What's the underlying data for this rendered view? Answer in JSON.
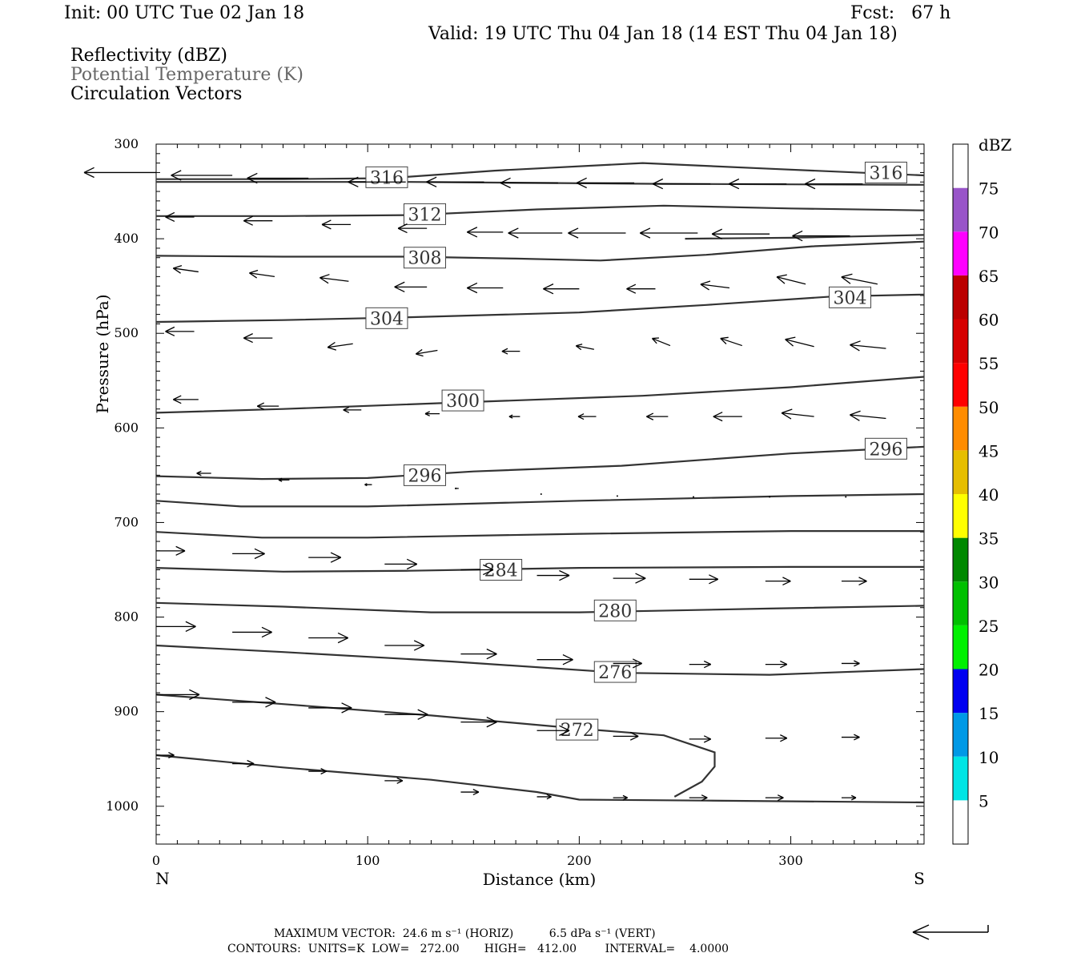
{
  "header": {
    "init": "Init: 00 UTC Tue 02 Jan 18",
    "fcst": "Fcst:   67 h",
    "valid": "Valid: 19 UTC Thu 04 Jan 18 (14 EST Thu 04 Jan 18)"
  },
  "legend": {
    "reflectivity": "Reflectivity (dBZ)",
    "theta": "Potential Temperature (K)",
    "vectors": "Circulation Vectors",
    "theta_color": "#666666"
  },
  "footer": {
    "max_vector": "MAXIMUM VECTOR:  24.6 m s⁻¹ (HORIZ)          6.5 dPa s⁻¹ (VERT)",
    "contours": "CONTOURS:  UNITS=K  LOW=   272.00       HIGH=   412.00        INTERVAL=    4.0000"
  },
  "chart_data": {
    "type": "contour",
    "xlabel": "Distance (km)",
    "ylabel": "Pressure (hPa)",
    "xlim": [
      0,
      363
    ],
    "ylim": [
      300,
      1040
    ],
    "x_ticks": [
      0,
      100,
      200,
      300
    ],
    "y_ticks": [
      300,
      400,
      500,
      600,
      700,
      800,
      900,
      1000
    ],
    "endpoint_labels": {
      "left": "N",
      "right": "S"
    },
    "colorbar": {
      "unit": "dBZ",
      "levels": [
        5,
        10,
        15,
        20,
        25,
        30,
        35,
        40,
        45,
        50,
        55,
        60,
        65,
        70,
        75
      ],
      "colors": [
        "#ffffff",
        "#00e5e5",
        "#0099e6",
        "#0000f0",
        "#00f000",
        "#00c000",
        "#008800",
        "#ffff00",
        "#e6be00",
        "#ff8c00",
        "#ff0000",
        "#d60000",
        "#bb0000",
        "#ff00ff",
        "#9955c9",
        "#ffffff"
      ]
    },
    "theta_contours": [
      {
        "label": "316",
        "label_at": [
          [
            109,
            335
          ],
          [
            345,
            330
          ]
        ],
        "points": [
          [
            0,
            337
          ],
          [
            60,
            337
          ],
          [
            110,
            336
          ],
          [
            160,
            328
          ],
          [
            230,
            320
          ],
          [
            290,
            326
          ],
          [
            363,
            333
          ]
        ]
      },
      {
        "label": "",
        "points": [
          [
            0,
            340
          ],
          [
            120,
            340
          ],
          [
            240,
            342
          ],
          [
            363,
            343
          ]
        ]
      },
      {
        "label": "312",
        "label_at": [
          [
            127,
            374
          ]
        ],
        "points": [
          [
            0,
            376
          ],
          [
            60,
            376
          ],
          [
            120,
            375
          ],
          [
            180,
            369
          ],
          [
            240,
            365
          ],
          [
            300,
            368
          ],
          [
            363,
            370
          ]
        ]
      },
      {
        "label": "",
        "points": [
          [
            250,
            400
          ],
          [
            300,
            399
          ],
          [
            363,
            396
          ]
        ]
      },
      {
        "label": "308",
        "label_at": [
          [
            127,
            420
          ]
        ],
        "points": [
          [
            0,
            418
          ],
          [
            60,
            419
          ],
          [
            120,
            419
          ],
          [
            170,
            421
          ],
          [
            210,
            423
          ],
          [
            260,
            417
          ],
          [
            310,
            408
          ],
          [
            363,
            403
          ]
        ]
      },
      {
        "label": "304",
        "label_at": [
          [
            109,
            484
          ],
          [
            328,
            462
          ]
        ],
        "points": [
          [
            0,
            488
          ],
          [
            60,
            486
          ],
          [
            120,
            483
          ],
          [
            200,
            478
          ],
          [
            260,
            470
          ],
          [
            320,
            461
          ],
          [
            363,
            459
          ]
        ]
      },
      {
        "label": "300",
        "label_at": [
          [
            145,
            571
          ]
        ],
        "points": [
          [
            0,
            584
          ],
          [
            60,
            580
          ],
          [
            145,
            573
          ],
          [
            230,
            566
          ],
          [
            300,
            557
          ],
          [
            363,
            546
          ]
        ]
      },
      {
        "label": "296",
        "label_at": [
          [
            127,
            650
          ],
          [
            345,
            622
          ]
        ],
        "points": [
          [
            0,
            651
          ],
          [
            50,
            654
          ],
          [
            100,
            653
          ],
          [
            150,
            646
          ],
          [
            220,
            640
          ],
          [
            300,
            627
          ],
          [
            363,
            620
          ]
        ]
      },
      {
        "label": "",
        "points": [
          [
            0,
            677
          ],
          [
            40,
            683
          ],
          [
            100,
            683
          ],
          [
            200,
            677
          ],
          [
            300,
            672
          ],
          [
            363,
            670
          ]
        ]
      },
      {
        "label": "",
        "points": [
          [
            0,
            710
          ],
          [
            50,
            716
          ],
          [
            100,
            716
          ],
          [
            200,
            712
          ],
          [
            300,
            709
          ],
          [
            363,
            709
          ]
        ]
      },
      {
        "label": "284",
        "label_at": [
          [
            163,
            750
          ]
        ],
        "points": [
          [
            0,
            748
          ],
          [
            60,
            752
          ],
          [
            120,
            751
          ],
          [
            200,
            748
          ],
          [
            300,
            747
          ],
          [
            363,
            747
          ]
        ]
      },
      {
        "label": "280",
        "label_at": [
          [
            217,
            793
          ]
        ],
        "points": [
          [
            0,
            785
          ],
          [
            60,
            789
          ],
          [
            130,
            795
          ],
          [
            200,
            795
          ],
          [
            290,
            791
          ],
          [
            363,
            788
          ]
        ]
      },
      {
        "label": "276",
        "label_at": [
          [
            217,
            858
          ]
        ],
        "points": [
          [
            0,
            830
          ],
          [
            60,
            837
          ],
          [
            140,
            847
          ],
          [
            220,
            859
          ],
          [
            290,
            861
          ],
          [
            363,
            855
          ]
        ]
      },
      {
        "label": "272",
        "label_at": [
          [
            199,
            919
          ]
        ],
        "points": [
          [
            0,
            882
          ],
          [
            60,
            892
          ],
          [
            130,
            904
          ],
          [
            200,
            918
          ],
          [
            240,
            925
          ],
          [
            264,
            943
          ],
          [
            264,
            958
          ],
          [
            258,
            974
          ],
          [
            245,
            990
          ]
        ]
      },
      {
        "label": "",
        "points": [
          [
            0,
            946
          ],
          [
            60,
            959
          ],
          [
            130,
            972
          ],
          [
            180,
            985
          ],
          [
            200,
            993
          ],
          [
            260,
            994
          ],
          [
            363,
            996
          ]
        ]
      }
    ],
    "vectors": [
      {
        "x": 0,
        "p": 330,
        "u": -20,
        "w": 0
      },
      {
        "x": 36,
        "p": 333,
        "u": -17,
        "w": 0
      },
      {
        "x": 72,
        "p": 336,
        "u": -17,
        "w": 0
      },
      {
        "x": 118,
        "p": 340,
        "u": -16,
        "w": 0
      },
      {
        "x": 155,
        "p": 340,
        "u": -16,
        "w": 0
      },
      {
        "x": 190,
        "p": 341,
        "u": -16,
        "w": 0
      },
      {
        "x": 226,
        "p": 341,
        "u": -16,
        "w": 0
      },
      {
        "x": 262,
        "p": 342,
        "u": -16,
        "w": 0
      },
      {
        "x": 298,
        "p": 342,
        "u": -16,
        "w": 0
      },
      {
        "x": 334,
        "p": 342,
        "u": -16,
        "w": 0
      },
      {
        "x": 18,
        "p": 377,
        "u": -8,
        "w": 0
      },
      {
        "x": 55,
        "p": 381,
        "u": -8,
        "w": 0
      },
      {
        "x": 92,
        "p": 385,
        "u": -8,
        "w": 0
      },
      {
        "x": 128,
        "p": 389,
        "u": -8,
        "w": 0
      },
      {
        "x": 164,
        "p": 393,
        "u": -10,
        "w": 0
      },
      {
        "x": 192,
        "p": 394,
        "u": -15,
        "w": 0
      },
      {
        "x": 222,
        "p": 394,
        "u": -16,
        "w": 0
      },
      {
        "x": 256,
        "p": 394,
        "u": -16,
        "w": 0
      },
      {
        "x": 290,
        "p": 395,
        "u": -16,
        "w": 0
      },
      {
        "x": 328,
        "p": 397,
        "u": -16,
        "w": 0
      },
      {
        "x": 20,
        "p": 435,
        "u": -7,
        "w": 1
      },
      {
        "x": 56,
        "p": 440,
        "u": -7,
        "w": 1
      },
      {
        "x": 91,
        "p": 445,
        "u": -8,
        "w": 1
      },
      {
        "x": 128,
        "p": 451,
        "u": -9,
        "w": 0
      },
      {
        "x": 164,
        "p": 452,
        "u": -10,
        "w": 0
      },
      {
        "x": 200,
        "p": 453,
        "u": -10,
        "w": 0
      },
      {
        "x": 236,
        "p": 453,
        "u": -8,
        "w": 0
      },
      {
        "x": 271,
        "p": 452,
        "u": -8,
        "w": 1
      },
      {
        "x": 307,
        "p": 448,
        "u": -8,
        "w": 2
      },
      {
        "x": 341,
        "p": 448,
        "u": -10,
        "w": 2
      },
      {
        "x": 18,
        "p": 498,
        "u": -8,
        "w": 0
      },
      {
        "x": 55,
        "p": 505,
        "u": -8,
        "w": 0
      },
      {
        "x": 93,
        "p": 511,
        "u": -7,
        "w": -1
      },
      {
        "x": 133,
        "p": 518,
        "u": -6,
        "w": -1
      },
      {
        "x": 172,
        "p": 519,
        "u": -5,
        "w": 0
      },
      {
        "x": 207,
        "p": 517,
        "u": -5,
        "w": 1
      },
      {
        "x": 243,
        "p": 513,
        "u": -5,
        "w": 2
      },
      {
        "x": 277,
        "p": 513,
        "u": -6,
        "w": 2
      },
      {
        "x": 311,
        "p": 514,
        "u": -8,
        "w": 2
      },
      {
        "x": 345,
        "p": 516,
        "u": -10,
        "w": 1
      },
      {
        "x": 20,
        "p": 570,
        "u": -7,
        "w": 0
      },
      {
        "x": 58,
        "p": 577,
        "u": -6,
        "w": 0
      },
      {
        "x": 97,
        "p": 581,
        "u": -5,
        "w": 0
      },
      {
        "x": 134,
        "p": 585,
        "u": -4,
        "w": 0
      },
      {
        "x": 172,
        "p": 588,
        "u": -3,
        "w": 0
      },
      {
        "x": 208,
        "p": 588,
        "u": -5,
        "w": 0
      },
      {
        "x": 242,
        "p": 588,
        "u": -6,
        "w": 0
      },
      {
        "x": 277,
        "p": 588,
        "u": -8,
        "w": 0
      },
      {
        "x": 311,
        "p": 588,
        "u": -9,
        "w": 1
      },
      {
        "x": 345,
        "p": 590,
        "u": -10,
        "w": 1
      },
      {
        "x": 26,
        "p": 648,
        "u": -4,
        "w": 0
      },
      {
        "x": 63,
        "p": 655,
        "u": -3,
        "w": 0
      },
      {
        "x": 102,
        "p": 660,
        "u": -2,
        "w": 0
      },
      {
        "x": 143,
        "p": 664,
        "u": -1,
        "w": 0
      },
      {
        "x": 182,
        "p": 670,
        "u": 0,
        "w": 0
      },
      {
        "x": 218,
        "p": 672,
        "u": 0,
        "w": 0
      },
      {
        "x": 254,
        "p": 673,
        "u": 0,
        "w": 0
      },
      {
        "x": 290,
        "p": 673,
        "u": 0,
        "w": 0
      },
      {
        "x": 326,
        "p": 673,
        "u": 0,
        "w": 0
      },
      {
        "x": 0,
        "p": 730,
        "u": 8,
        "w": 0
      },
      {
        "x": 36,
        "p": 733,
        "u": 9,
        "w": 0
      },
      {
        "x": 72,
        "p": 737,
        "u": 9,
        "w": 0
      },
      {
        "x": 108,
        "p": 744,
        "u": 9,
        "w": 0
      },
      {
        "x": 144,
        "p": 750,
        "u": 9,
        "w": 0
      },
      {
        "x": 180,
        "p": 756,
        "u": 9,
        "w": 0
      },
      {
        "x": 216,
        "p": 759,
        "u": 9,
        "w": 0
      },
      {
        "x": 252,
        "p": 760,
        "u": 8,
        "w": 0
      },
      {
        "x": 288,
        "p": 762,
        "u": 7,
        "w": 0
      },
      {
        "x": 324,
        "p": 762,
        "u": 7,
        "w": 0
      },
      {
        "x": 0,
        "p": 810,
        "u": 11,
        "w": 0
      },
      {
        "x": 36,
        "p": 816,
        "u": 11,
        "w": 0
      },
      {
        "x": 72,
        "p": 822,
        "u": 11,
        "w": 0
      },
      {
        "x": 108,
        "p": 830,
        "u": 11,
        "w": 0
      },
      {
        "x": 144,
        "p": 839,
        "u": 10,
        "w": 0
      },
      {
        "x": 180,
        "p": 845,
        "u": 10,
        "w": 0
      },
      {
        "x": 216,
        "p": 849,
        "u": 8,
        "w": 0
      },
      {
        "x": 252,
        "p": 850,
        "u": 6,
        "w": 0
      },
      {
        "x": 288,
        "p": 850,
        "u": 6,
        "w": 0
      },
      {
        "x": 324,
        "p": 849,
        "u": 5,
        "w": 0
      },
      {
        "x": 0,
        "p": 882,
        "u": 12,
        "w": 0
      },
      {
        "x": 36,
        "p": 890,
        "u": 12,
        "w": 0
      },
      {
        "x": 72,
        "p": 896,
        "u": 12,
        "w": 0
      },
      {
        "x": 108,
        "p": 903,
        "u": 12,
        "w": 0
      },
      {
        "x": 144,
        "p": 911,
        "u": 10,
        "w": 0
      },
      {
        "x": 180,
        "p": 920,
        "u": 9,
        "w": 0
      },
      {
        "x": 216,
        "p": 926,
        "u": 7,
        "w": 0
      },
      {
        "x": 252,
        "p": 929,
        "u": 6,
        "w": 0
      },
      {
        "x": 288,
        "p": 928,
        "u": 6,
        "w": 0
      },
      {
        "x": 324,
        "p": 927,
        "u": 5,
        "w": 0
      },
      {
        "x": 0,
        "p": 946,
        "u": 5,
        "w": 0
      },
      {
        "x": 36,
        "p": 955,
        "u": 6,
        "w": 0
      },
      {
        "x": 72,
        "p": 963,
        "u": 5,
        "w": 0
      },
      {
        "x": 108,
        "p": 973,
        "u": 5,
        "w": 0
      },
      {
        "x": 144,
        "p": 985,
        "u": 5,
        "w": 0
      },
      {
        "x": 180,
        "p": 990,
        "u": 4,
        "w": 0
      },
      {
        "x": 216,
        "p": 991,
        "u": 4,
        "w": 0
      },
      {
        "x": 252,
        "p": 991,
        "u": 5,
        "w": 0
      },
      {
        "x": 288,
        "p": 991,
        "u": 5,
        "w": 0
      },
      {
        "x": 324,
        "p": 991,
        "u": 4,
        "w": 0
      }
    ]
  }
}
